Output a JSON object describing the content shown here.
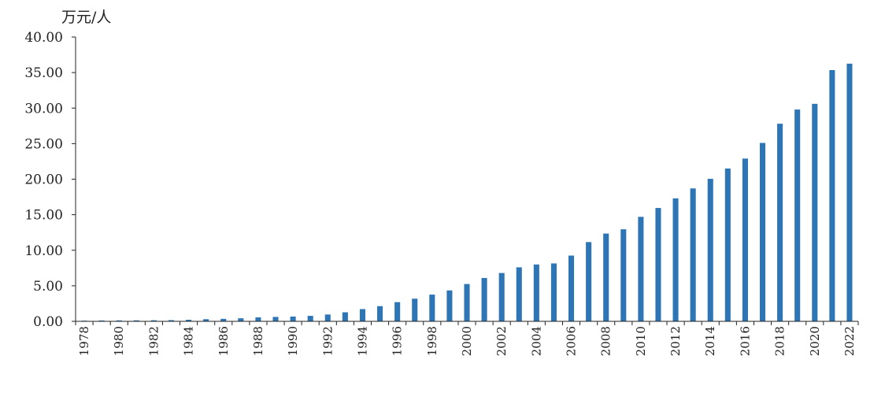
{
  "chart_data": {
    "type": "bar",
    "title": "",
    "y_unit_label": "万元/人",
    "xlabel": "",
    "ylabel": "",
    "ylim": [
      0,
      40
    ],
    "yticks": [
      "0.00",
      "5.00",
      "10.00",
      "15.00",
      "20.00",
      "25.00",
      "30.00",
      "35.00",
      "40.00"
    ],
    "grid": false,
    "legend": "none",
    "bar_color": "#2E75B6",
    "categories": [
      "1978",
      "1979",
      "1980",
      "1981",
      "1982",
      "1983",
      "1984",
      "1985",
      "1986",
      "1987",
      "1988",
      "1989",
      "1990",
      "1991",
      "1992",
      "1993",
      "1994",
      "1995",
      "1996",
      "1997",
      "1998",
      "1999",
      "2000",
      "2001",
      "2002",
      "2003",
      "2004",
      "2005",
      "2006",
      "2007",
      "2008",
      "2009",
      "2010",
      "2011",
      "2012",
      "2013",
      "2014",
      "2015",
      "2016",
      "2017",
      "2018",
      "2019",
      "2020",
      "2021",
      "2022"
    ],
    "x_tick_labels": [
      "1978",
      "",
      "1980",
      "",
      "1982",
      "",
      "1984",
      "",
      "1986",
      "",
      "1988",
      "",
      "1990",
      "",
      "1992",
      "",
      "1994",
      "",
      "1996",
      "",
      "1998",
      "",
      "2000",
      "",
      "2002",
      "",
      "2004",
      "",
      "2006",
      "",
      "2008",
      "",
      "2010",
      "",
      "2012",
      "",
      "2014",
      "",
      "2016",
      "",
      "2018",
      "",
      "2020",
      "",
      "2022"
    ],
    "values": [
      0.09,
      0.12,
      0.13,
      0.14,
      0.15,
      0.17,
      0.22,
      0.3,
      0.35,
      0.43,
      0.56,
      0.62,
      0.67,
      0.77,
      0.96,
      1.27,
      1.72,
      2.14,
      2.7,
      3.19,
      3.76,
      4.35,
      5.25,
      6.1,
      6.8,
      7.6,
      8.0,
      8.15,
      9.25,
      11.15,
      12.35,
      12.95,
      14.7,
      15.95,
      17.3,
      18.7,
      20.05,
      21.5,
      22.9,
      25.1,
      27.8,
      29.8,
      30.6,
      35.35,
      36.25
    ]
  }
}
